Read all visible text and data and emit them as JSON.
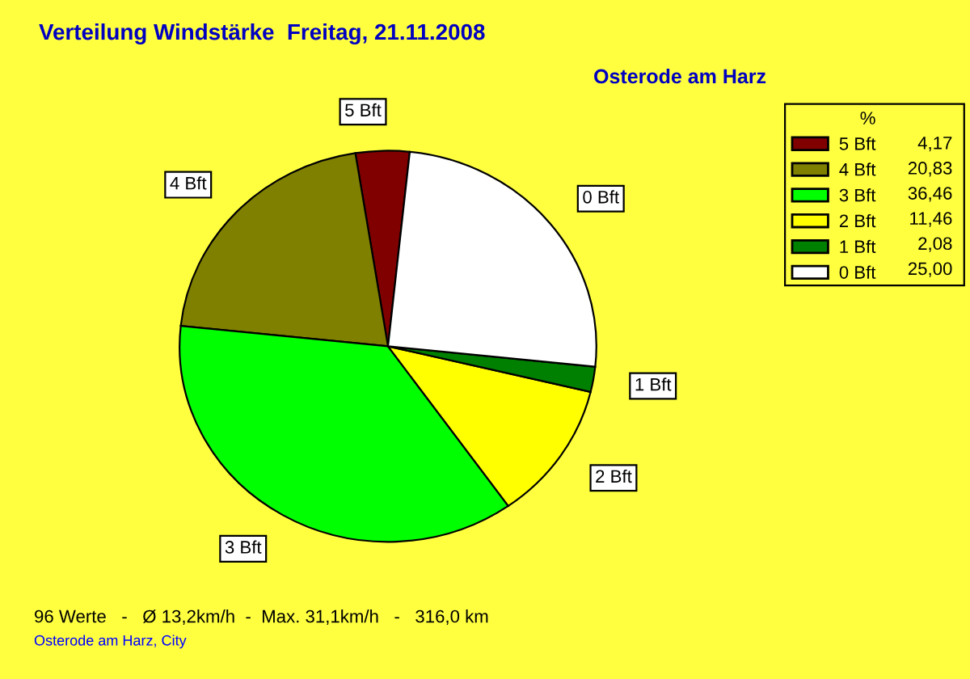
{
  "chart_data": {
    "type": "pie",
    "title": "Verteilung Windstärke  Freitag, 21.11.2008",
    "subtitle": "Osterode am Harz",
    "legend_title": "%",
    "legend": "top right",
    "categories": [
      "5 Bft",
      "4 Bft",
      "3 Bft",
      "2 Bft",
      "1 Bft",
      "0 Bft"
    ],
    "values": [
      4.17,
      20.83,
      36.46,
      11.46,
      2.08,
      25.0
    ],
    "value_labels": [
      "4,17",
      "20,83",
      "36,46",
      "11,46",
      "2,08",
      "25,00"
    ],
    "colors": [
      "#800000",
      "#808000",
      "#00ff00",
      "#ffff00",
      "#008000",
      "#ffffff"
    ],
    "annotations": [
      "96 Werte   -   Ø 13,2km/h  -  Max. 31,1km/h   -   316,0 km",
      "Osterode am Harz, City"
    ]
  }
}
